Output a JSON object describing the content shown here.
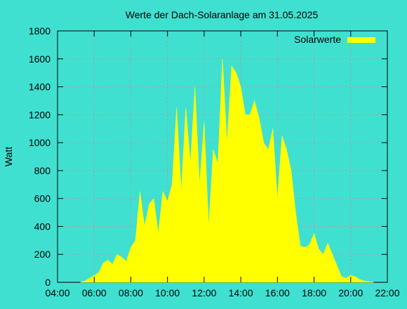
{
  "chart_data": {
    "type": "area",
    "title": "Werte der Dach-Solaranlage am 31.05.2025",
    "xlabel": "",
    "ylabel": "Watt",
    "xlim": [
      "04:00",
      "22:00"
    ],
    "ylim": [
      0,
      1800
    ],
    "x_ticks": [
      "04:00",
      "06:00",
      "08:00",
      "10:00",
      "12:00",
      "14:00",
      "16:00",
      "18:00",
      "20:00",
      "22:00"
    ],
    "y_ticks": [
      0,
      200,
      400,
      600,
      800,
      1000,
      1200,
      1400,
      1600,
      1800
    ],
    "grid": true,
    "legend_position": "top-right",
    "colors": {
      "background": "#40e0d0",
      "series": "#ffff00",
      "grid": "#a0a0a0",
      "axis": "#000000"
    },
    "series": [
      {
        "name": "Solarwerte",
        "x": [
          "05:15",
          "05:30",
          "05:45",
          "06:00",
          "06:15",
          "06:30",
          "06:45",
          "07:00",
          "07:15",
          "07:30",
          "07:45",
          "08:00",
          "08:15",
          "08:30",
          "08:45",
          "09:00",
          "09:15",
          "09:30",
          "09:45",
          "10:00",
          "10:15",
          "10:30",
          "10:45",
          "11:00",
          "11:15",
          "11:30",
          "11:45",
          "12:00",
          "12:15",
          "12:30",
          "12:45",
          "13:00",
          "13:15",
          "13:30",
          "13:45",
          "14:00",
          "14:15",
          "14:30",
          "14:45",
          "15:00",
          "15:15",
          "15:30",
          "15:45",
          "16:00",
          "16:15",
          "16:30",
          "16:45",
          "17:00",
          "17:15",
          "17:30",
          "17:45",
          "18:00",
          "18:15",
          "18:30",
          "18:45",
          "19:00",
          "19:15",
          "19:30",
          "19:45",
          "20:00",
          "20:15",
          "20:30",
          "20:45",
          "21:00",
          "21:15"
        ],
        "values": [
          0,
          10,
          30,
          50,
          70,
          140,
          160,
          130,
          200,
          180,
          150,
          250,
          300,
          650,
          400,
          560,
          600,
          350,
          650,
          580,
          700,
          1250,
          650,
          1250,
          850,
          1400,
          700,
          1150,
          400,
          950,
          850,
          1600,
          1000,
          1550,
          1500,
          1400,
          1200,
          1200,
          1300,
          1180,
          1000,
          950,
          1100,
          600,
          1050,
          950,
          800,
          500,
          260,
          250,
          270,
          350,
          240,
          200,
          280,
          200,
          120,
          40,
          30,
          50,
          40,
          20,
          10,
          5,
          0
        ]
      }
    ]
  }
}
